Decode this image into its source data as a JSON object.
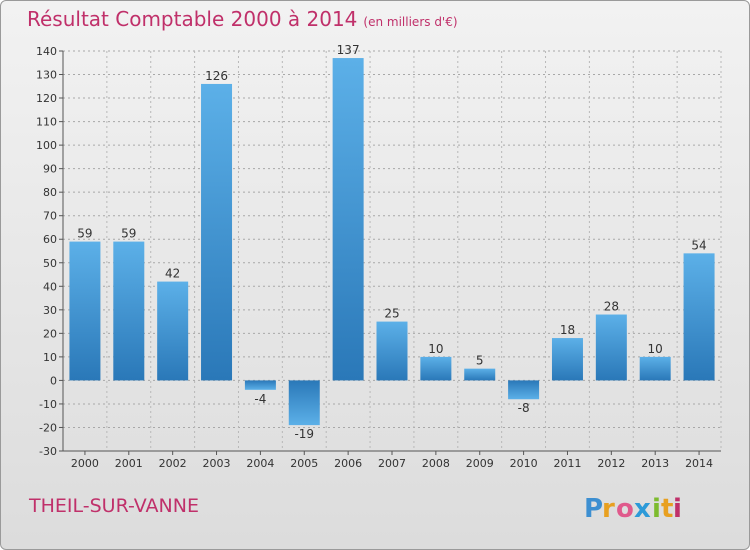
{
  "header": {
    "title": "Résultat Comptable 2000 à 2014",
    "subtitle": "(en milliers d'€)"
  },
  "footer": {
    "commune": "THEIL-SUR-VANNE",
    "logo_text": "Proxiti"
  },
  "colors": {
    "accent": "#c0306a",
    "bar_light": "#5aaee6",
    "bar_dark": "#2a78b8"
  },
  "chart_data": {
    "type": "bar",
    "title": "Résultat Comptable 2000 à 2014",
    "subtitle": "(en milliers d'€)",
    "xlabel": "",
    "ylabel": "",
    "categories": [
      "2000",
      "2001",
      "2002",
      "2003",
      "2004",
      "2005",
      "2006",
      "2007",
      "2008",
      "2009",
      "2010",
      "2011",
      "2012",
      "2013",
      "2014"
    ],
    "values": [
      59,
      59,
      42,
      126,
      -4,
      -19,
      137,
      25,
      10,
      5,
      -8,
      18,
      28,
      10,
      54
    ],
    "ylim": [
      -30,
      140
    ],
    "yticks": [
      -30,
      -20,
      -10,
      0,
      10,
      20,
      30,
      40,
      50,
      60,
      70,
      80,
      90,
      100,
      110,
      120,
      130,
      140
    ],
    "grid": "horizontal-dashed",
    "legend": "none"
  }
}
